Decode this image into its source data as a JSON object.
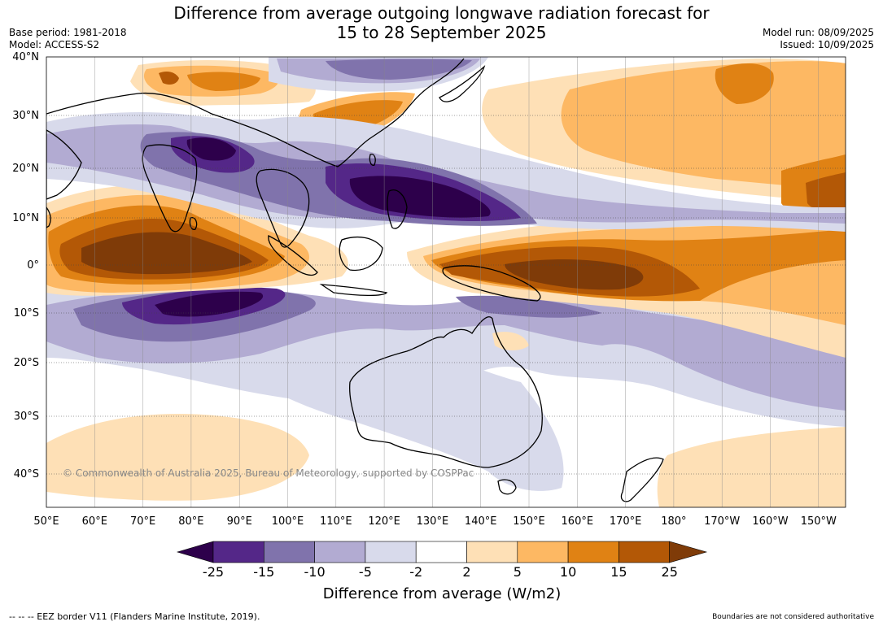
{
  "title": {
    "line1": "Difference from average outgoing longwave radiation forecast for",
    "line2": "15 to 28 September 2025"
  },
  "meta_left": {
    "base_period": "Base period: 1981-2018",
    "model": "Model: ACCESS-S2"
  },
  "meta_right": {
    "model_run": "Model run: 08/09/2025",
    "issued": "Issued: 10/09/2025"
  },
  "lat_labels": [
    "40°N",
    "30°N",
    "20°N",
    "10°N",
    "0°",
    "10°S",
    "20°S",
    "30°S",
    "40°S"
  ],
  "lon_labels": [
    "50°E",
    "60°E",
    "70°E",
    "80°E",
    "90°E",
    "100°E",
    "110°E",
    "120°E",
    "130°E",
    "140°E",
    "150°E",
    "160°E",
    "170°E",
    "180°",
    "170°W",
    "160°W",
    "150°W"
  ],
  "copyright": "© Commonwealth of Australia 2025, Bureau of Meteorology, supported by COSPPac",
  "colorbar": {
    "ticks": [
      "-25",
      "-15",
      "-10",
      "-5",
      "-2",
      "2",
      "5",
      "10",
      "15",
      "25"
    ],
    "colors": {
      "below_min": "#2d004b",
      "bins": [
        "#542788",
        "#8073ac",
        "#b2abd2",
        "#d8daeb",
        "#ffffff",
        "#fee0b6",
        "#fdb863",
        "#e08214",
        "#b35806"
      ],
      "above_max": "#7f3b08"
    },
    "title": "Difference from average (W/m2)"
  },
  "footer": {
    "left": "--  --  -- EEZ border V11 (Flanders Marine Institute, 2019).",
    "right": "Boundaries are not considered authoritative"
  }
}
